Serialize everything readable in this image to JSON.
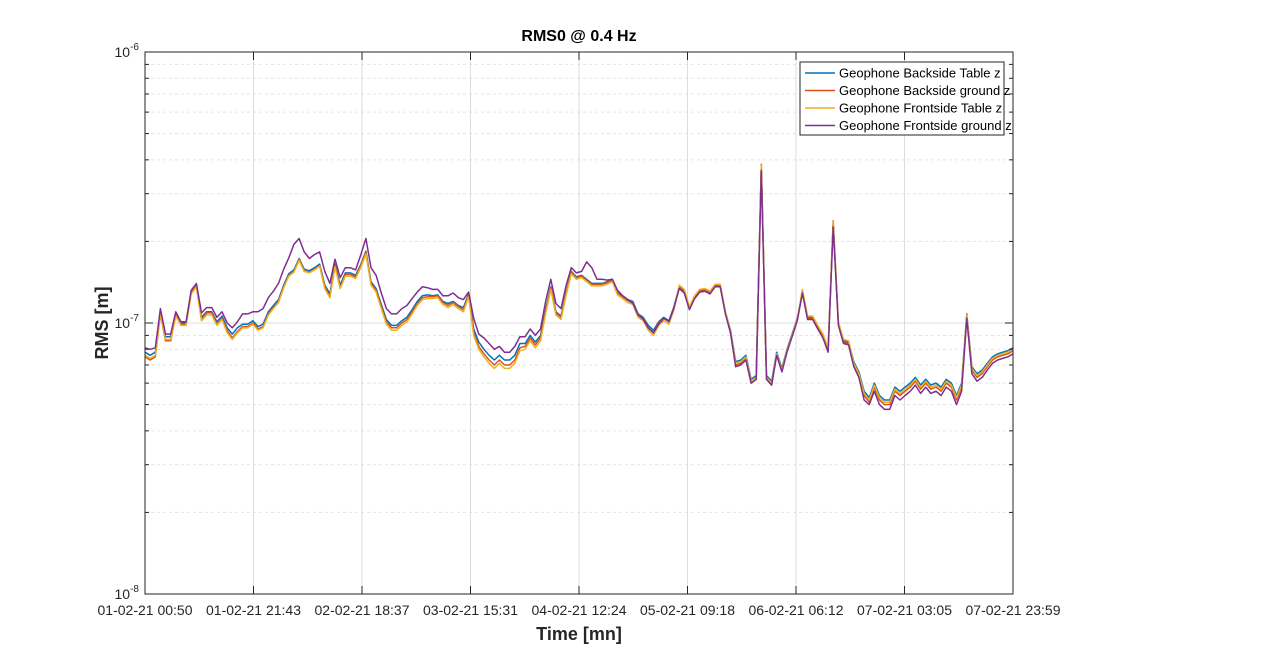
{
  "chart_data": {
    "type": "line",
    "title": "RMS0 @ 0.4 Hz",
    "xlabel": "Time [mn]",
    "ylabel": "RMS [m]",
    "y_scale": "log",
    "ylim": [
      1e-08,
      1e-06
    ],
    "y_ticks": [
      {
        "value": 1e-08,
        "base": "10",
        "exp": "-8"
      },
      {
        "value": 1e-07,
        "base": "10",
        "exp": "-7"
      },
      {
        "value": 1e-06,
        "base": "10",
        "exp": "-6"
      }
    ],
    "xlim": [
      "01-02-21 00:50",
      "07-02-21 23:59"
    ],
    "x_ticks": [
      "01-02-21 00:50",
      "01-02-21 21:43",
      "02-02-21 18:37",
      "03-02-21 15:31",
      "04-02-21 12:24",
      "05-02-21 09:18",
      "06-02-21 06:12",
      "07-02-21 03:05",
      "07-02-21 23:59"
    ],
    "grid": true,
    "minor_grid": true,
    "legend_position": "top-right",
    "colors": [
      "#0072bd",
      "#d95319",
      "#edb120",
      "#7e2f8e"
    ],
    "series": [
      {
        "name": "Geophone Backside Table z",
        "values": [
          7.8e-08,
          7.6e-08,
          7.8e-08,
          1.1e-07,
          8.9e-08,
          8.9e-08,
          1.08e-07,
          1e-07,
          1e-07,
          1.3e-07,
          1.38e-07,
          1.05e-07,
          1.1e-07,
          1.1e-07,
          1.01e-07,
          1.06e-07,
          9.6e-08,
          9.1e-08,
          9.6e-08,
          9.9e-08,
          9.9e-08,
          1.02e-07,
          9.7e-08,
          9.9e-08,
          1.1e-07,
          1.16e-07,
          1.22e-07,
          1.38e-07,
          1.52e-07,
          1.57e-07,
          1.73e-07,
          1.58e-07,
          1.56e-07,
          1.6e-07,
          1.65e-07,
          1.38e-07,
          1.28e-07,
          1.65e-07,
          1.38e-07,
          1.53e-07,
          1.53e-07,
          1.5e-07,
          1.64e-07,
          1.84e-07,
          1.42e-07,
          1.34e-07,
          1.17e-07,
          1.03e-07,
          9.8e-08,
          9.8e-08,
          1.02e-07,
          1.05e-07,
          1.12e-07,
          1.2e-07,
          1.26e-07,
          1.27e-07,
          1.26e-07,
          1.27e-07,
          1.2e-07,
          1.18e-07,
          1.2e-07,
          1.16e-07,
          1.14e-07,
          1.28e-07,
          9.5e-08,
          8.5e-08,
          8e-08,
          7.6e-08,
          7.3e-08,
          7.6e-08,
          7.3e-08,
          7.3e-08,
          7.6e-08,
          8.4e-08,
          8.4e-08,
          9e-08,
          8.5e-08,
          9e-08,
          1.12e-07,
          1.36e-07,
          1.1e-07,
          1.06e-07,
          1.3e-07,
          1.55e-07,
          1.48e-07,
          1.5e-07,
          1.45e-07,
          1.4e-07,
          1.4e-07,
          1.4e-07,
          1.42e-07,
          1.45e-07,
          1.3e-07,
          1.26e-07,
          1.22e-07,
          1.2e-07,
          1.08e-07,
          1.05e-07,
          9.8e-08,
          9.4e-08,
          1.01e-07,
          1.05e-07,
          1.02e-07,
          1.15e-07,
          1.36e-07,
          1.31e-07,
          1.14e-07,
          1.25e-07,
          1.32e-07,
          1.33e-07,
          1.3e-07,
          1.38e-07,
          1.38e-07,
          1.1e-07,
          9.4e-08,
          7.2e-08,
          7.3e-08,
          7.6e-08,
          6.2e-08,
          6.4e-08,
          3.8e-07,
          6.4e-08,
          6.1e-08,
          7.8e-08,
          6.8e-08,
          8e-08,
          9.1e-08,
          1.04e-07,
          1.3e-07,
          1.05e-07,
          1.05e-07,
          9.7e-08,
          9e-08,
          8e-08,
          2.35e-07,
          1e-07,
          8.6e-08,
          8.5e-08,
          7.2e-08,
          6.6e-08,
          5.6e-08,
          5.3e-08,
          6e-08,
          5.4e-08,
          5.2e-08,
          5.2e-08,
          5.8e-08,
          5.6e-08,
          5.8e-08,
          6e-08,
          6.3e-08,
          5.9e-08,
          6.2e-08,
          5.9e-08,
          6e-08,
          5.8e-08,
          6.2e-08,
          6e-08,
          5.4e-08,
          6e-08,
          1.08e-07,
          6.9e-08,
          6.5e-08,
          6.7e-08,
          7.1e-08,
          7.5e-08,
          7.7e-08,
          7.8e-08,
          7.9e-08,
          8.1e-08
        ]
      },
      {
        "name": "Geophone Backside ground z",
        "values": [
          7.5e-08,
          7.3e-08,
          7.5e-08,
          1.08e-07,
          8.6e-08,
          8.6e-08,
          1.07e-07,
          9.9e-08,
          9.9e-08,
          1.29e-07,
          1.37e-07,
          1.03e-07,
          1.09e-07,
          1.09e-07,
          9.9e-08,
          1.04e-07,
          9.4e-08,
          8.8e-08,
          9.3e-08,
          9.7e-08,
          9.7e-08,
          1e-07,
          9.5e-08,
          9.7e-08,
          1.08e-07,
          1.14e-07,
          1.2e-07,
          1.36e-07,
          1.5e-07,
          1.55e-07,
          1.72e-07,
          1.56e-07,
          1.54e-07,
          1.58e-07,
          1.63e-07,
          1.36e-07,
          1.25e-07,
          1.63e-07,
          1.35e-07,
          1.51e-07,
          1.51e-07,
          1.48e-07,
          1.62e-07,
          1.82e-07,
          1.4e-07,
          1.32e-07,
          1.15e-07,
          1.01e-07,
          9.6e-08,
          9.6e-08,
          1e-07,
          1.03e-07,
          1.1e-07,
          1.18e-07,
          1.24e-07,
          1.25e-07,
          1.25e-07,
          1.26e-07,
          1.19e-07,
          1.16e-07,
          1.19e-07,
          1.15e-07,
          1.12e-07,
          1.27e-07,
          9.2e-08,
          8.2e-08,
          7.7e-08,
          7.3e-08,
          7e-08,
          7.3e-08,
          7e-08,
          7e-08,
          7.3e-08,
          8.1e-08,
          8.2e-08,
          8.8e-08,
          8.3e-08,
          8.8e-08,
          1.1e-07,
          1.35e-07,
          1.09e-07,
          1.05e-07,
          1.29e-07,
          1.54e-07,
          1.47e-07,
          1.49e-07,
          1.44e-07,
          1.39e-07,
          1.39e-07,
          1.39e-07,
          1.41e-07,
          1.44e-07,
          1.29e-07,
          1.25e-07,
          1.21e-07,
          1.19e-07,
          1.07e-07,
          1.04e-07,
          9.6e-08,
          9.2e-08,
          1e-07,
          1.04e-07,
          1.01e-07,
          1.14e-07,
          1.35e-07,
          1.3e-07,
          1.13e-07,
          1.24e-07,
          1.31e-07,
          1.32e-07,
          1.29e-07,
          1.37e-07,
          1.37e-07,
          1.09e-07,
          9.2e-08,
          7e-08,
          7.1e-08,
          7.4e-08,
          6e-08,
          6.2e-08,
          3.85e-07,
          6.2e-08,
          5.9e-08,
          7.7e-08,
          6.7e-08,
          7.9e-08,
          9e-08,
          1.03e-07,
          1.29e-07,
          1.04e-07,
          1.04e-07,
          9.6e-08,
          8.9e-08,
          7.9e-08,
          2.38e-07,
          9.9e-08,
          8.5e-08,
          8.4e-08,
          7e-08,
          6.4e-08,
          5.4e-08,
          5.1e-08,
          5.8e-08,
          5.2e-08,
          5e-08,
          5e-08,
          5.6e-08,
          5.4e-08,
          5.6e-08,
          5.8e-08,
          6.1e-08,
          5.7e-08,
          6e-08,
          5.7e-08,
          5.8e-08,
          5.6e-08,
          6e-08,
          5.8e-08,
          5.2e-08,
          5.8e-08,
          1.06e-07,
          6.7e-08,
          6.3e-08,
          6.5e-08,
          6.9e-08,
          7.3e-08,
          7.5e-08,
          7.6e-08,
          7.7e-08,
          7.9e-08
        ]
      },
      {
        "name": "Geophone Frontside Table z",
        "values": [
          7.6e-08,
          7.4e-08,
          7.6e-08,
          1.09e-07,
          8.7e-08,
          8.7e-08,
          1.06e-07,
          9.8e-08,
          9.8e-08,
          1.28e-07,
          1.36e-07,
          1.02e-07,
          1.07e-07,
          1.07e-07,
          9.8e-08,
          1.03e-07,
          9.2e-08,
          8.7e-08,
          9.2e-08,
          9.6e-08,
          9.6e-08,
          9.9e-08,
          9.4e-08,
          9.6e-08,
          1.07e-07,
          1.13e-07,
          1.19e-07,
          1.35e-07,
          1.49e-07,
          1.54e-07,
          1.7e-07,
          1.55e-07,
          1.53e-07,
          1.57e-07,
          1.62e-07,
          1.34e-07,
          1.24e-07,
          1.61e-07,
          1.34e-07,
          1.49e-07,
          1.49e-07,
          1.46e-07,
          1.6e-07,
          1.8e-07,
          1.38e-07,
          1.3e-07,
          1.13e-07,
          9.9e-08,
          9.4e-08,
          9.4e-08,
          9.8e-08,
          1.01e-07,
          1.08e-07,
          1.16e-07,
          1.22e-07,
          1.23e-07,
          1.23e-07,
          1.24e-07,
          1.17e-07,
          1.14e-07,
          1.17e-07,
          1.13e-07,
          1.1e-07,
          1.25e-07,
          9e-08,
          8e-08,
          7.5e-08,
          7.1e-08,
          6.8e-08,
          7.1e-08,
          6.8e-08,
          6.8e-08,
          7.1e-08,
          7.9e-08,
          8e-08,
          8.6e-08,
          8.1e-08,
          8.6e-08,
          1.08e-07,
          1.33e-07,
          1.07e-07,
          1.03e-07,
          1.27e-07,
          1.52e-07,
          1.45e-07,
          1.47e-07,
          1.42e-07,
          1.37e-07,
          1.37e-07,
          1.37e-07,
          1.39e-07,
          1.42e-07,
          1.27e-07,
          1.23e-07,
          1.19e-07,
          1.17e-07,
          1.05e-07,
          1.02e-07,
          9.4e-08,
          9e-08,
          9.8e-08,
          1.02e-07,
          9.9e-08,
          1.12e-07,
          1.38e-07,
          1.33e-07,
          1.15e-07,
          1.26e-07,
          1.33e-07,
          1.34e-07,
          1.31e-07,
          1.39e-07,
          1.39e-07,
          1.1e-07,
          9.3e-08,
          7.1e-08,
          7.2e-08,
          7.5e-08,
          6.1e-08,
          6.3e-08,
          3.82e-07,
          6.3e-08,
          6e-08,
          7.7e-08,
          6.7e-08,
          7.9e-08,
          9e-08,
          1.03e-07,
          1.33e-07,
          1.06e-07,
          1.06e-07,
          9.8e-08,
          9.1e-08,
          8.1e-08,
          2.36e-07,
          1.01e-07,
          8.7e-08,
          8.6e-08,
          7.1e-08,
          6.5e-08,
          5.5e-08,
          5.2e-08,
          5.9e-08,
          5.3e-08,
          5.1e-08,
          5.1e-08,
          5.7e-08,
          5.5e-08,
          5.7e-08,
          5.9e-08,
          6.2e-08,
          5.8e-08,
          6.1e-08,
          5.8e-08,
          5.9e-08,
          5.7e-08,
          6.1e-08,
          5.9e-08,
          5.3e-08,
          5.9e-08,
          1.07e-07,
          6.8e-08,
          6.4e-08,
          6.6e-08,
          7e-08,
          7.4e-08,
          7.6e-08,
          7.7e-08,
          7.8e-08,
          8e-08
        ]
      },
      {
        "name": "Geophone Frontside ground z",
        "values": [
          8.1e-08,
          8e-08,
          8.1e-08,
          1.13e-07,
          9.1e-08,
          9.1e-08,
          1.1e-07,
          1.01e-07,
          1.01e-07,
          1.32e-07,
          1.4e-07,
          1.09e-07,
          1.14e-07,
          1.14e-07,
          1.05e-07,
          1.1e-07,
          1e-07,
          9.6e-08,
          1.01e-07,
          1.08e-07,
          1.08e-07,
          1.1e-07,
          1.1e-07,
          1.13e-07,
          1.24e-07,
          1.31e-07,
          1.4e-07,
          1.58e-07,
          1.74e-07,
          1.95e-07,
          2.05e-07,
          1.83e-07,
          1.73e-07,
          1.79e-07,
          1.83e-07,
          1.55e-07,
          1.4e-07,
          1.72e-07,
          1.47e-07,
          1.6e-07,
          1.6e-07,
          1.57e-07,
          1.78e-07,
          2.05e-07,
          1.6e-07,
          1.5e-07,
          1.29e-07,
          1.13e-07,
          1.08e-07,
          1.08e-07,
          1.13e-07,
          1.16e-07,
          1.23e-07,
          1.3e-07,
          1.36e-07,
          1.35e-07,
          1.33e-07,
          1.33e-07,
          1.26e-07,
          1.26e-07,
          1.29e-07,
          1.24e-07,
          1.22e-07,
          1.3e-07,
          1.04e-07,
          9.1e-08,
          8.8e-08,
          8.4e-08,
          8e-08,
          8.2e-08,
          7.8e-08,
          7.8e-08,
          8.2e-08,
          8.9e-08,
          8.9e-08,
          9.5e-08,
          9e-08,
          9.5e-08,
          1.2e-07,
          1.45e-07,
          1.18e-07,
          1.13e-07,
          1.38e-07,
          1.6e-07,
          1.53e-07,
          1.55e-07,
          1.68e-07,
          1.6e-07,
          1.45e-07,
          1.45e-07,
          1.44e-07,
          1.45e-07,
          1.32e-07,
          1.26e-07,
          1.22e-07,
          1.18e-07,
          1.07e-07,
          1.03e-07,
          9.6e-08,
          9.2e-08,
          9.9e-08,
          1.04e-07,
          1.01e-07,
          1.14e-07,
          1.34e-07,
          1.29e-07,
          1.12e-07,
          1.23e-07,
          1.3e-07,
          1.31e-07,
          1.28e-07,
          1.36e-07,
          1.36e-07,
          1.08e-07,
          9.2e-08,
          6.9e-08,
          7e-08,
          7.3e-08,
          6e-08,
          6.2e-08,
          3.65e-07,
          6.2e-08,
          5.9e-08,
          7.6e-08,
          6.6e-08,
          7.8e-08,
          8.9e-08,
          1.02e-07,
          1.29e-07,
          1.03e-07,
          1.03e-07,
          9.5e-08,
          8.8e-08,
          7.8e-08,
          2.26e-07,
          9.8e-08,
          8.4e-08,
          8.3e-08,
          6.9e-08,
          6.3e-08,
          5.2e-08,
          5e-08,
          5.6e-08,
          5e-08,
          4.8e-08,
          4.8e-08,
          5.4e-08,
          5.2e-08,
          5.4e-08,
          5.6e-08,
          5.9e-08,
          5.5e-08,
          5.8e-08,
          5.5e-08,
          5.6e-08,
          5.4e-08,
          5.8e-08,
          5.6e-08,
          5e-08,
          5.6e-08,
          1.04e-07,
          6.5e-08,
          6.1e-08,
          6.3e-08,
          6.7e-08,
          7.1e-08,
          7.3e-08,
          7.4e-08,
          7.5e-08,
          7.7e-08
        ]
      }
    ]
  }
}
